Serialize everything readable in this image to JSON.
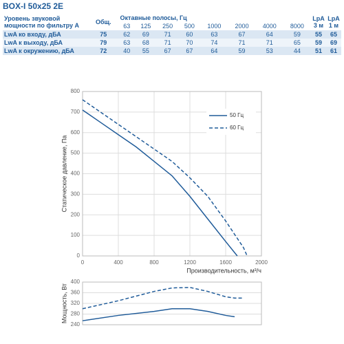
{
  "title": "BOX-I 50x25 2E",
  "table": {
    "header": [
      "Уровень звуковой мощности по фильтру А",
      "Общ.",
      "Октавные полосы, Гц",
      "LpA 3 м",
      "LpA 1 м"
    ],
    "bands": [
      63,
      125,
      250,
      500,
      1000,
      2000,
      4000,
      8000
    ],
    "rows": [
      [
        "LwA ко входу, дБА",
        75,
        62,
        69,
        71,
        60,
        63,
        67,
        64,
        59,
        55,
        65
      ],
      [
        "LwA к выходу, дБА",
        79,
        63,
        68,
        71,
        70,
        74,
        71,
        71,
        65,
        59,
        69
      ],
      [
        "LwA к окружению, дБА",
        72,
        40,
        55,
        67,
        67,
        64,
        59,
        53,
        44,
        51,
        61
      ]
    ]
  },
  "chart_data": [
    {
      "type": "line",
      "ylabel": "Статическое давление, Па",
      "xlabel": "Производительность, м³/ч",
      "xlim": [
        0,
        2000
      ],
      "xticks": [
        0,
        400,
        800,
        1200,
        1600,
        2000
      ],
      "ylim": [
        0,
        800
      ],
      "yticks": [
        0,
        100,
        200,
        300,
        400,
        500,
        600,
        700,
        800
      ],
      "grid": true,
      "legend": "upper right",
      "series": [
        {
          "name": "50 Гц",
          "color": "#1f5b99",
          "linestyle": "solid",
          "x": [
            0,
            200,
            400,
            600,
            800,
            1000,
            1200,
            1400,
            1600,
            1730
          ],
          "values": [
            710,
            650,
            590,
            530,
            460,
            390,
            290,
            180,
            70,
            0
          ]
        },
        {
          "name": "60 Гц",
          "color": "#1f5b99",
          "linestyle": "dashed",
          "x": [
            0,
            200,
            400,
            600,
            800,
            1000,
            1200,
            1400,
            1600,
            1800,
            1840
          ],
          "values": [
            760,
            700,
            640,
            580,
            520,
            460,
            380,
            290,
            170,
            40,
            0
          ]
        }
      ]
    },
    {
      "type": "line",
      "ylabel": "Мощность, Вт",
      "xlim": [
        0,
        2000
      ],
      "ylim": [
        240,
        400
      ],
      "yticks": [
        240,
        280,
        320,
        360,
        400
      ],
      "grid": true,
      "series": [
        {
          "color": "#1f5b99",
          "linestyle": "solid",
          "x": [
            0,
            400,
            800,
            1000,
            1200,
            1400,
            1600,
            1700
          ],
          "values": [
            255,
            275,
            290,
            300,
            300,
            290,
            275,
            270
          ]
        },
        {
          "color": "#1f5b99",
          "linestyle": "dashed",
          "x": [
            0,
            400,
            800,
            1000,
            1200,
            1400,
            1600,
            1700,
            1800
          ],
          "values": [
            300,
            330,
            365,
            378,
            380,
            365,
            345,
            340,
            340
          ]
        }
      ]
    }
  ]
}
